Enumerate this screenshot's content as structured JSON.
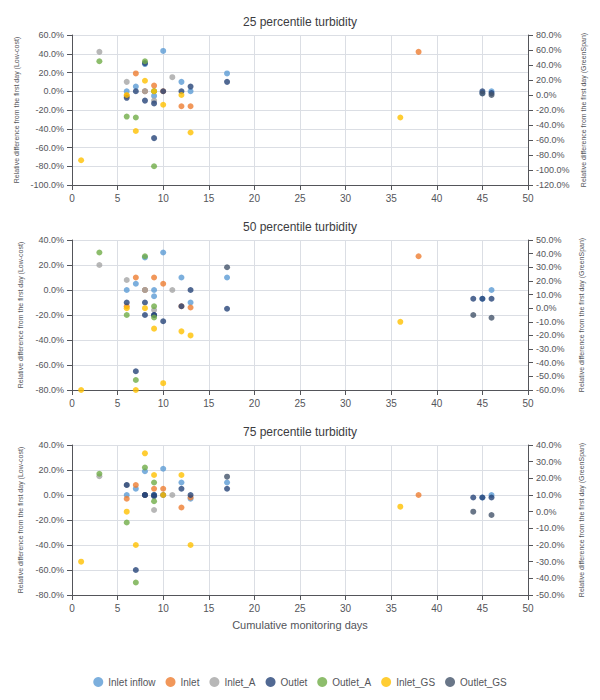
{
  "chart_data": [
    {
      "type": "scatter",
      "title": "25 percentile turbidity",
      "ylabel": "Relative difference from the first day (Low-cost)",
      "y2label": "Relative difference from the first day (GreenSpan)",
      "xlim": [
        0,
        50
      ],
      "xticks": [
        0,
        5,
        10,
        15,
        20,
        25,
        30,
        35,
        40,
        45,
        50
      ],
      "ylim": [
        -1.0,
        0.6
      ],
      "yticks": [
        {
          "value": -1.0,
          "label": "-100.0%"
        },
        {
          "value": -0.8,
          "label": "-80.0%"
        },
        {
          "value": -0.6,
          "label": "-60.0%"
        },
        {
          "value": -0.4,
          "label": "-40.0%"
        },
        {
          "value": -0.2,
          "label": "-20.0%"
        },
        {
          "value": 0.0,
          "label": "0.0%"
        },
        {
          "value": 0.2,
          "label": "20.0%"
        },
        {
          "value": 0.4,
          "label": "40.0%"
        },
        {
          "value": 0.6,
          "label": "60.0%"
        }
      ],
      "y2lim": [
        -1.2,
        0.8
      ],
      "y2ticks": [
        {
          "value": -1.2,
          "label": "-120.0%"
        },
        {
          "value": -1.0,
          "label": "-100.0%"
        },
        {
          "value": -0.8,
          "label": "-80.0%"
        },
        {
          "value": -0.6,
          "label": "-60.0%"
        },
        {
          "value": -0.4,
          "label": "-40.0%"
        },
        {
          "value": -0.2,
          "label": "-20.0%"
        },
        {
          "value": 0.0,
          "label": "0.0%"
        },
        {
          "value": 0.2,
          "label": "20.0%"
        },
        {
          "value": 0.4,
          "label": "40.0%"
        },
        {
          "value": 0.6,
          "label": "60.0%"
        },
        {
          "value": 0.8,
          "label": "80.0%"
        }
      ],
      "grid": true,
      "series": [
        {
          "name": "Inlet inflow",
          "color": "#5B9BD5",
          "x": [
            6,
            7,
            8,
            8,
            9,
            9,
            10,
            12,
            13,
            17,
            45,
            46
          ],
          "values": [
            0.0,
            0.05,
            0.29,
            0.0,
            0.0,
            -0.05,
            0.43,
            0.1,
            0.0,
            0.19,
            -0.02,
            0.0
          ]
        },
        {
          "name": "Inlet",
          "color": "#ED7D31",
          "x": [
            6,
            7,
            8,
            9,
            10,
            12,
            13,
            38
          ],
          "values": [
            -0.05,
            0.19,
            0.0,
            0.06,
            0.0,
            -0.16,
            -0.16,
            0.42
          ]
        },
        {
          "name": "Inlet_A",
          "color": "#A5A5A5",
          "x": [
            3,
            6,
            8,
            9,
            11
          ],
          "values": [
            0.42,
            0.1,
            0.0,
            -0.1,
            0.15
          ]
        },
        {
          "name": "Outlet",
          "color": "#264478",
          "x": [
            6,
            7,
            8,
            8,
            9,
            9,
            10,
            12,
            13,
            17,
            45,
            46
          ],
          "values": [
            -0.07,
            0.0,
            0.3,
            -0.1,
            -0.13,
            -0.5,
            0.0,
            0.0,
            0.05,
            0.1,
            0.0,
            -0.02
          ]
        },
        {
          "name": "Outlet_A",
          "color": "#70AD47",
          "x": [
            3,
            6,
            7,
            8,
            9,
            9
          ],
          "values": [
            0.32,
            -0.27,
            -0.28,
            0.32,
            -0.8,
            0.0
          ]
        },
        {
          "name": "Inlet_GS",
          "color": "#FFC000",
          "axis": "y2",
          "x": [
            1,
            6,
            7,
            8,
            9,
            10,
            12,
            13,
            36
          ],
          "values": [
            -0.87,
            0.0,
            -0.48,
            0.19,
            0.05,
            -0.13,
            0.0,
            -0.5,
            -0.3
          ]
        },
        {
          "name": "Outlet_GS",
          "color": "#44546A",
          "axis": "y2",
          "x": [
            45,
            46
          ],
          "values": [
            0.02,
            0.0
          ]
        }
      ]
    },
    {
      "type": "scatter",
      "title": "50 percentile turbidity",
      "ylabel": "Relative difference from the first day (Low-cost)",
      "y2label": "Relative difference from the first day (GreenSpan)",
      "xlim": [
        0,
        50
      ],
      "xticks": [
        0,
        5,
        10,
        15,
        20,
        25,
        30,
        35,
        40,
        45,
        50
      ],
      "ylim": [
        -0.8,
        0.4
      ],
      "yticks": [
        {
          "value": -0.8,
          "label": "-80.0%"
        },
        {
          "value": -0.6,
          "label": "-60.0%"
        },
        {
          "value": -0.4,
          "label": "-40.0%"
        },
        {
          "value": -0.2,
          "label": "-20.0%"
        },
        {
          "value": 0.0,
          "label": "0.0%"
        },
        {
          "value": 0.2,
          "label": "20.0%"
        },
        {
          "value": 0.4,
          "label": "40.0%"
        }
      ],
      "y2lim": [
        -0.6,
        0.5
      ],
      "y2ticks": [
        {
          "value": -0.6,
          "label": "-60.0%"
        },
        {
          "value": -0.5,
          "label": "-50.0%"
        },
        {
          "value": -0.4,
          "label": "-40.0%"
        },
        {
          "value": -0.3,
          "label": "-30.0%"
        },
        {
          "value": -0.2,
          "label": "-20.0%"
        },
        {
          "value": -0.1,
          "label": "-10.0%"
        },
        {
          "value": 0.0,
          "label": "0.0%"
        },
        {
          "value": 0.1,
          "label": "10.0%"
        },
        {
          "value": 0.2,
          "label": "20.0%"
        },
        {
          "value": 0.3,
          "label": "30.0%"
        },
        {
          "value": 0.4,
          "label": "40.0%"
        },
        {
          "value": 0.5,
          "label": "50.0%"
        }
      ],
      "grid": true,
      "series": [
        {
          "name": "Inlet inflow",
          "color": "#5B9BD5",
          "x": [
            6,
            7,
            8,
            8,
            9,
            9,
            10,
            12,
            13,
            17,
            45,
            46
          ],
          "values": [
            0.0,
            0.05,
            0.26,
            0.0,
            0.0,
            -0.05,
            0.3,
            0.1,
            -0.1,
            0.1,
            -0.07,
            0.0
          ]
        },
        {
          "name": "Inlet",
          "color": "#ED7D31",
          "x": [
            6,
            7,
            8,
            9,
            10,
            12,
            13,
            38
          ],
          "values": [
            -0.13,
            0.1,
            0.0,
            0.1,
            0.05,
            -0.13,
            -0.14,
            0.27
          ]
        },
        {
          "name": "Inlet_A",
          "color": "#A5A5A5",
          "x": [
            3,
            6,
            8,
            9,
            11
          ],
          "values": [
            0.2,
            0.08,
            0.0,
            -0.16,
            0.0
          ]
        },
        {
          "name": "Outlet",
          "color": "#264478",
          "x": [
            6,
            7,
            8,
            8,
            9,
            9,
            10,
            12,
            13,
            17,
            44,
            45,
            46
          ],
          "values": [
            -0.1,
            -0.65,
            -0.1,
            -0.2,
            -0.2,
            -0.2,
            -0.25,
            -0.13,
            0.0,
            -0.15,
            -0.07,
            -0.07,
            -0.07
          ]
        },
        {
          "name": "Outlet_A",
          "color": "#70AD47",
          "x": [
            3,
            6,
            7,
            8,
            9,
            9
          ],
          "values": [
            0.3,
            -0.2,
            -0.72,
            0.27,
            -0.22,
            -0.13
          ]
        },
        {
          "name": "Inlet_GS",
          "color": "#FFC000",
          "axis": "y2",
          "x": [
            1,
            6,
            7,
            8,
            9,
            10,
            12,
            13,
            36
          ],
          "values": [
            -0.6,
            0.0,
            -0.6,
            0.0,
            -0.15,
            -0.55,
            -0.17,
            -0.2,
            -0.1
          ]
        },
        {
          "name": "Outlet_GS",
          "color": "#44546A",
          "axis": "y2",
          "x": [
            17,
            44,
            46
          ],
          "values": [
            0.3,
            -0.05,
            -0.07
          ]
        }
      ]
    },
    {
      "type": "scatter",
      "title": "75 percentile turbidity",
      "xlabel": "Cumulative monitoring days",
      "ylabel": "Relative difference from the first day (Low-cost)",
      "y2label": "Relative difference from the first day (GreenSpan)",
      "xlim": [
        0,
        50
      ],
      "xticks": [
        0,
        5,
        10,
        15,
        20,
        25,
        30,
        35,
        40,
        45,
        50
      ],
      "ylim": [
        -0.8,
        0.4
      ],
      "yticks": [
        {
          "value": -0.8,
          "label": "-80.0%"
        },
        {
          "value": -0.6,
          "label": "-60.0%"
        },
        {
          "value": -0.4,
          "label": "-40.0%"
        },
        {
          "value": -0.2,
          "label": "-20.0%"
        },
        {
          "value": 0.0,
          "label": "0.0%"
        },
        {
          "value": 0.2,
          "label": "20.0%"
        },
        {
          "value": 0.4,
          "label": "40.0%"
        }
      ],
      "y2lim": [
        -0.5,
        0.4
      ],
      "y2ticks": [
        {
          "value": -0.5,
          "label": "-50.0%"
        },
        {
          "value": -0.4,
          "label": "-40.0%"
        },
        {
          "value": -0.3,
          "label": "-30.0%"
        },
        {
          "value": -0.2,
          "label": "-20.0%"
        },
        {
          "value": -0.1,
          "label": "-10.0%"
        },
        {
          "value": 0.0,
          "label": "0.0%"
        },
        {
          "value": 0.1,
          "label": "10.0%"
        },
        {
          "value": 0.2,
          "label": "20.0%"
        },
        {
          "value": 0.3,
          "label": "30.0%"
        },
        {
          "value": 0.4,
          "label": "40.0%"
        }
      ],
      "grid": true,
      "legend": "bottom",
      "series": [
        {
          "name": "Inlet inflow",
          "color": "#5B9BD5",
          "x": [
            6,
            7,
            8,
            8,
            9,
            9,
            10,
            12,
            13,
            17,
            45,
            46
          ],
          "values": [
            0.0,
            0.05,
            0.19,
            0.0,
            0.0,
            0.0,
            0.21,
            0.1,
            -0.03,
            0.1,
            -0.02,
            0.0
          ]
        },
        {
          "name": "Inlet",
          "color": "#ED7D31",
          "x": [
            6,
            7,
            8,
            9,
            10,
            12,
            13,
            38
          ],
          "values": [
            -0.03,
            0.08,
            0.0,
            0.05,
            0.05,
            -0.1,
            -0.02,
            0.0
          ]
        },
        {
          "name": "Inlet_A",
          "color": "#A5A5A5",
          "x": [
            3,
            6,
            8,
            9,
            11
          ],
          "values": [
            0.15,
            0.08,
            0.0,
            -0.12,
            0.0
          ]
        },
        {
          "name": "Outlet",
          "color": "#264478",
          "x": [
            6,
            7,
            8,
            8,
            9,
            9,
            10,
            12,
            13,
            17,
            44,
            45,
            46
          ],
          "values": [
            0.08,
            -0.6,
            0.0,
            0.0,
            0.0,
            -0.01,
            0.0,
            0.05,
            0.0,
            0.05,
            -0.02,
            -0.02,
            -0.02
          ]
        },
        {
          "name": "Outlet_A",
          "color": "#70AD47",
          "x": [
            3,
            6,
            7,
            8,
            9,
            9
          ],
          "values": [
            0.17,
            -0.22,
            -0.7,
            0.22,
            0.1,
            -0.05
          ]
        },
        {
          "name": "Inlet_GS",
          "color": "#FFC000",
          "axis": "y2",
          "x": [
            1,
            6,
            7,
            8,
            9,
            10,
            12,
            13,
            36
          ],
          "values": [
            -0.3,
            0.0,
            -0.2,
            0.35,
            0.22,
            0.1,
            0.22,
            -0.2,
            0.03
          ]
        },
        {
          "name": "Outlet_GS",
          "color": "#44546A",
          "axis": "y2",
          "x": [
            17,
            44,
            46
          ],
          "values": [
            0.21,
            0.0,
            -0.02
          ]
        }
      ]
    }
  ]
}
